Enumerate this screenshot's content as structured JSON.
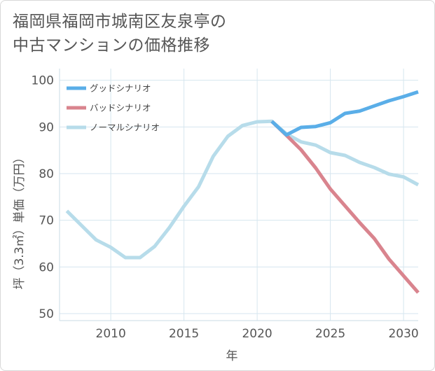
{
  "title_lines": [
    "福岡県福岡市城南区友泉亭の",
    "中古マンションの価格推移"
  ],
  "chart_data": {
    "type": "line",
    "xlabel": "年",
    "ylabel": "坪（3.3㎡）単価（万円）",
    "xlim": [
      2006.5,
      2031
    ],
    "ylim": [
      48.5,
      102.5
    ],
    "xticks": [
      2010,
      2015,
      2020,
      2025,
      2030
    ],
    "yticks": [
      50,
      60,
      70,
      80,
      90,
      100
    ],
    "grid": true,
    "legend_position": "top-left",
    "series": [
      {
        "name": "グッドシナリオ",
        "color": "#5aaee8",
        "x": [
          2021,
          2022,
          2023,
          2024,
          2025,
          2026,
          2027,
          2028,
          2029,
          2030,
          2031
        ],
        "y": [
          91.2,
          88.3,
          89.9,
          90.1,
          90.9,
          92.9,
          93.4,
          94.5,
          95.6,
          96.5,
          97.5
        ]
      },
      {
        "name": "バッドシナリオ",
        "color": "#d9848e",
        "x": [
          2021,
          2022,
          2023,
          2024,
          2025,
          2026,
          2027,
          2028,
          2029,
          2030,
          2031
        ],
        "y": [
          91.2,
          88.2,
          85.1,
          81.2,
          76.7,
          73.1,
          69.5,
          66.1,
          61.7,
          58.1,
          54.5
        ]
      },
      {
        "name": "ノーマルシナリオ",
        "color": "#b7dcea",
        "x": [
          2007,
          2008,
          2009,
          2010,
          2011,
          2012,
          2013,
          2014,
          2015,
          2016,
          2017,
          2018,
          2019,
          2020,
          2021,
          2022,
          2023,
          2024,
          2025,
          2026,
          2027,
          2028,
          2029,
          2030,
          2031
        ],
        "y": [
          72.0,
          68.9,
          65.8,
          64.2,
          62.0,
          62.0,
          64.4,
          68.4,
          73.0,
          77.2,
          83.7,
          88.0,
          90.3,
          91.1,
          91.2,
          88.5,
          86.8,
          86.1,
          84.5,
          83.9,
          82.4,
          81.3,
          79.9,
          79.3,
          77.6
        ]
      }
    ]
  }
}
